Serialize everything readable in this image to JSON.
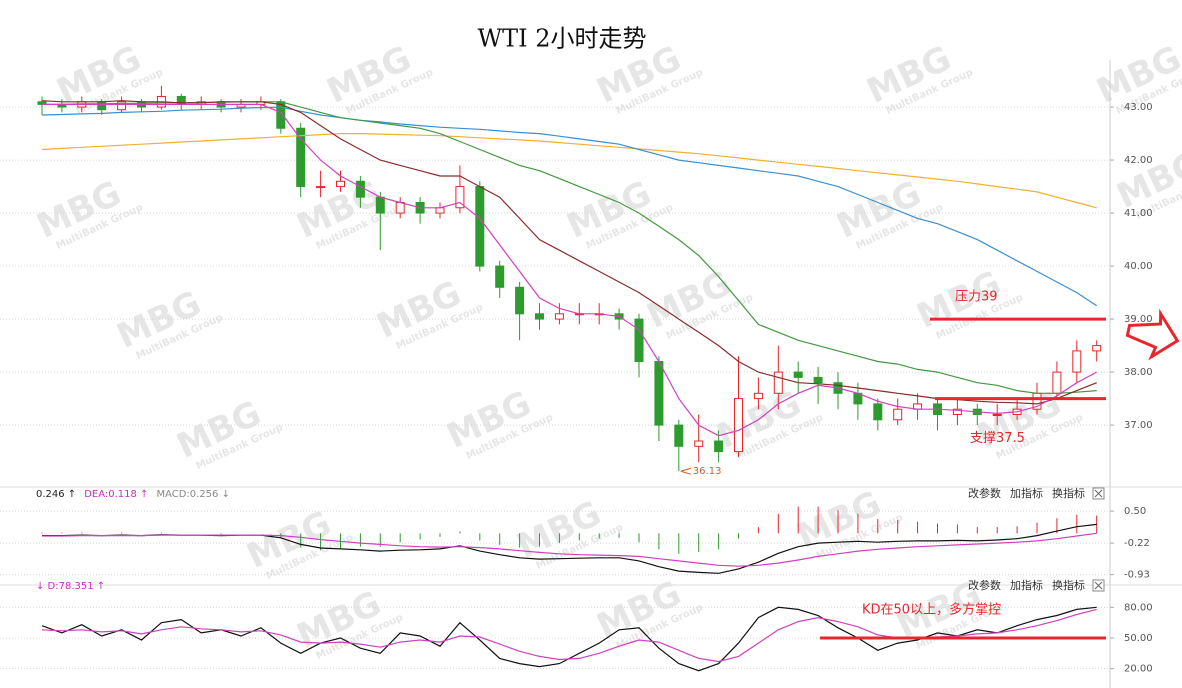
{
  "watermark": {
    "logo": "MBG",
    "text": "MultiBank Group"
  },
  "chart_data": [
    {
      "type": "candlestick",
      "title": "WTI 2小时走势",
      "open": [
        43.1,
        43.05,
        43.0,
        43.1,
        42.95,
        43.1,
        43.0,
        43.2,
        43.05,
        43.1,
        43.0,
        43.05,
        43.1,
        42.6,
        41.5,
        41.5,
        41.6,
        41.3,
        41.0,
        41.2,
        41.0,
        41.1,
        41.5,
        40.0,
        39.6,
        39.1,
        39.0,
        39.1,
        39.1,
        39.1,
        39.0,
        38.2,
        37.0,
        36.6,
        36.7,
        36.5,
        37.5,
        37.6,
        38.0,
        37.9,
        37.8,
        37.6,
        37.4,
        37.1,
        37.3,
        37.4,
        37.2,
        37.3,
        37.2,
        37.2,
        37.3,
        37.6,
        38.0,
        38.4
      ],
      "high": [
        43.2,
        43.15,
        43.2,
        43.15,
        43.2,
        43.15,
        43.4,
        43.25,
        43.2,
        43.15,
        43.15,
        43.2,
        43.15,
        42.7,
        41.8,
        41.8,
        41.7,
        41.4,
        41.3,
        41.3,
        41.2,
        41.9,
        41.6,
        40.1,
        39.7,
        39.3,
        39.3,
        39.3,
        39.3,
        39.2,
        39.1,
        38.3,
        37.1,
        37.2,
        36.9,
        38.3,
        37.9,
        38.5,
        38.2,
        38.1,
        38.0,
        37.8,
        37.5,
        37.5,
        37.6,
        37.5,
        37.5,
        37.4,
        37.4,
        37.5,
        37.8,
        38.2,
        38.6,
        38.6
      ],
      "low": [
        42.85,
        42.9,
        42.9,
        42.85,
        42.9,
        42.9,
        42.95,
        42.95,
        42.95,
        42.9,
        42.9,
        42.95,
        42.5,
        41.3,
        41.3,
        41.4,
        41.1,
        40.3,
        40.9,
        40.8,
        40.9,
        41.0,
        39.9,
        39.4,
        38.6,
        38.8,
        38.9,
        38.9,
        38.9,
        38.8,
        37.9,
        36.7,
        36.13,
        36.3,
        36.3,
        36.4,
        37.3,
        37.3,
        37.6,
        37.4,
        37.3,
        37.1,
        36.9,
        37.0,
        37.1,
        36.9,
        37.0,
        37.0,
        37.0,
        37.1,
        37.2,
        37.5,
        37.8,
        38.2
      ],
      "close": [
        43.05,
        43.0,
        43.1,
        42.95,
        43.1,
        43.0,
        43.2,
        43.05,
        43.1,
        43.0,
        43.05,
        43.1,
        42.6,
        41.5,
        41.5,
        41.6,
        41.3,
        41.0,
        41.2,
        41.0,
        41.1,
        41.5,
        40.0,
        39.6,
        39.1,
        39.0,
        39.1,
        39.1,
        39.1,
        39.0,
        38.2,
        37.0,
        36.6,
        36.7,
        36.5,
        37.5,
        37.6,
        38.0,
        37.9,
        37.8,
        37.6,
        37.4,
        37.1,
        37.3,
        37.4,
        37.2,
        37.3,
        37.2,
        37.2,
        37.3,
        37.6,
        38.0,
        38.4,
        38.5
      ],
      "up_color": "#e8242a",
      "down_color": "#2e9b2e",
      "series": [
        {
          "color": "#f0b030",
          "values": [
            42.2,
            42.22,
            42.24,
            42.26,
            42.28,
            42.3,
            42.32,
            42.34,
            42.36,
            42.38,
            42.4,
            42.42,
            42.44,
            42.46,
            42.48,
            42.5,
            42.5,
            42.49,
            42.48,
            42.47,
            42.46,
            42.44,
            42.42,
            42.4,
            42.38,
            42.36,
            42.33,
            42.3,
            42.27,
            42.24,
            42.21,
            42.18,
            42.15,
            42.12,
            42.08,
            42.04,
            42.0,
            41.96,
            41.92,
            41.88,
            41.84,
            41.8,
            41.76,
            41.72,
            41.68,
            41.64,
            41.6,
            41.55,
            41.5,
            41.45,
            41.4,
            41.3,
            41.2,
            41.1
          ]
        },
        {
          "color": "#3a8fd0",
          "values": [
            42.85,
            42.86,
            42.87,
            42.88,
            42.9,
            42.91,
            42.92,
            42.94,
            42.95,
            42.96,
            42.98,
            42.99,
            43.0,
            42.92,
            42.85,
            42.8,
            42.75,
            42.72,
            42.68,
            42.65,
            42.62,
            42.6,
            42.58,
            42.55,
            42.52,
            42.5,
            42.45,
            42.4,
            42.35,
            42.3,
            42.2,
            42.1,
            42.0,
            41.95,
            41.9,
            41.85,
            41.8,
            41.75,
            41.7,
            41.6,
            41.5,
            41.35,
            41.2,
            41.05,
            40.9,
            40.8,
            40.65,
            40.5,
            40.3,
            40.1,
            39.9,
            39.7,
            39.5,
            39.25
          ]
        },
        {
          "color": "#3f9a3f",
          "values": [
            43.05,
            43.05,
            43.06,
            43.06,
            43.07,
            43.07,
            43.08,
            43.08,
            43.09,
            43.09,
            43.1,
            43.1,
            43.1,
            43.0,
            42.9,
            42.8,
            42.75,
            42.7,
            42.65,
            42.6,
            42.5,
            42.35,
            42.2,
            42.05,
            41.9,
            41.8,
            41.65,
            41.5,
            41.35,
            41.2,
            41.0,
            40.75,
            40.5,
            40.2,
            39.8,
            39.35,
            38.9,
            38.75,
            38.6,
            38.5,
            38.4,
            38.3,
            38.2,
            38.15,
            38.05,
            38.0,
            37.9,
            37.8,
            37.75,
            37.65,
            37.6,
            37.6,
            37.62,
            37.65
          ]
        },
        {
          "color": "#8b2a2a",
          "values": [
            43.12,
            43.1,
            43.1,
            43.1,
            43.12,
            43.1,
            43.1,
            43.08,
            43.08,
            43.1,
            43.1,
            43.1,
            43.05,
            42.9,
            42.65,
            42.4,
            42.2,
            42.0,
            41.9,
            41.8,
            41.7,
            41.7,
            41.5,
            41.3,
            40.9,
            40.5,
            40.3,
            40.1,
            39.9,
            39.7,
            39.5,
            39.25,
            39.0,
            38.75,
            38.5,
            38.2,
            38.0,
            37.9,
            37.8,
            37.78,
            37.75,
            37.7,
            37.65,
            37.6,
            37.55,
            37.5,
            37.48,
            37.45,
            37.43,
            37.42,
            37.4,
            37.5,
            37.65,
            37.8
          ]
        },
        {
          "color": "#d040c0",
          "values": [
            43.05,
            43.05,
            43.05,
            43.05,
            43.05,
            43.05,
            43.05,
            43.05,
            43.05,
            43.05,
            43.05,
            43.05,
            42.9,
            42.4,
            42.0,
            41.7,
            41.5,
            41.3,
            41.2,
            41.1,
            41.1,
            41.2,
            40.9,
            40.4,
            39.9,
            39.4,
            39.2,
            39.1,
            39.1,
            39.05,
            38.8,
            38.2,
            37.5,
            37.0,
            36.8,
            36.9,
            37.1,
            37.4,
            37.6,
            37.75,
            37.7,
            37.6,
            37.45,
            37.35,
            37.3,
            37.3,
            37.28,
            37.25,
            37.22,
            37.25,
            37.35,
            37.55,
            37.8,
            38.0
          ]
        }
      ],
      "ylim": [
        35.87,
        43.85
      ],
      "yticks": [
        {
          "value": 43,
          "label": "43.00"
        },
        {
          "value": 42,
          "label": "42.00"
        },
        {
          "value": 41,
          "label": "41.00"
        },
        {
          "value": 40,
          "label": "40.00"
        },
        {
          "value": 39,
          "label": "39.00"
        },
        {
          "value": 38,
          "label": "38.00"
        },
        {
          "value": 37,
          "label": "37.00"
        }
      ],
      "grid": true,
      "level_color": "#e8262c",
      "levels": [
        {
          "label": "压力39",
          "value": 39
        },
        {
          "label": "支撑37.5",
          "value": 37.5
        }
      ],
      "min_label": 36.13
    },
    {
      "type": "macd",
      "legend": [
        {
          "text": "0.246 ↑",
          "color": "#222"
        },
        {
          "text": "DEA:0.118 ↑",
          "color": "#c030c0"
        },
        {
          "text": "MACD:0.256 ↓",
          "color": "#888"
        }
      ],
      "buttons": [
        "改参数",
        "加指标",
        "换指标"
      ],
      "series": [
        {
          "color": "#111",
          "values": [
            -0.05,
            -0.05,
            -0.04,
            -0.05,
            -0.04,
            -0.05,
            -0.03,
            -0.04,
            -0.04,
            -0.05,
            -0.04,
            -0.04,
            -0.1,
            -0.25,
            -0.33,
            -0.35,
            -0.37,
            -0.4,
            -0.38,
            -0.37,
            -0.35,
            -0.28,
            -0.4,
            -0.48,
            -0.55,
            -0.58,
            -0.57,
            -0.56,
            -0.55,
            -0.55,
            -0.62,
            -0.75,
            -0.85,
            -0.88,
            -0.9,
            -0.8,
            -0.65,
            -0.45,
            -0.3,
            -0.22,
            -0.2,
            -0.18,
            -0.2,
            -0.18,
            -0.17,
            -0.17,
            -0.16,
            -0.17,
            -0.15,
            -0.12,
            -0.05,
            0.05,
            0.15,
            0.2
          ]
        },
        {
          "color": "#d040c0",
          "values": [
            -0.06,
            -0.06,
            -0.05,
            -0.05,
            -0.05,
            -0.05,
            -0.04,
            -0.04,
            -0.04,
            -0.04,
            -0.04,
            -0.04,
            -0.05,
            -0.09,
            -0.14,
            -0.18,
            -0.22,
            -0.25,
            -0.28,
            -0.3,
            -0.31,
            -0.3,
            -0.32,
            -0.35,
            -0.39,
            -0.43,
            -0.46,
            -0.48,
            -0.49,
            -0.5,
            -0.52,
            -0.57,
            -0.62,
            -0.67,
            -0.72,
            -0.74,
            -0.72,
            -0.67,
            -0.6,
            -0.52,
            -0.46,
            -0.4,
            -0.36,
            -0.33,
            -0.3,
            -0.28,
            -0.26,
            -0.24,
            -0.22,
            -0.2,
            -0.17,
            -0.12,
            -0.06,
            0.0
          ]
        }
      ],
      "bars": {
        "up_color": "#e8242a",
        "down_color": "#2e9b2e",
        "values": [
          0.02,
          0.02,
          0.02,
          0,
          0.02,
          0,
          0.02,
          0,
          0,
          -0.02,
          0,
          0,
          -0.1,
          -0.32,
          -0.38,
          -0.34,
          -0.3,
          -0.3,
          -0.2,
          -0.14,
          -0.08,
          0.04,
          -0.16,
          -0.26,
          -0.32,
          -0.3,
          -0.22,
          -0.16,
          -0.12,
          -0.1,
          -0.2,
          -0.36,
          -0.46,
          -0.42,
          -0.36,
          -0.12,
          0.14,
          0.44,
          0.6,
          0.6,
          0.52,
          0.44,
          0.32,
          0.3,
          0.26,
          0.22,
          0.2,
          0.14,
          0.14,
          0.16,
          0.24,
          0.34,
          0.42,
          0.4
        ]
      },
      "ylim": [
        -1.05,
        0.75
      ],
      "yticks": [
        {
          "value": 0.5,
          "label": "0.50"
        },
        -0.22,
        -0.93
      ]
    },
    {
      "type": "kd",
      "legend": [
        {
          "text": "↓ D:78.351 ↑",
          "color": "#c030c0"
        }
      ],
      "buttons": [
        "改参数",
        "加指标",
        "换指标"
      ],
      "series": [
        {
          "color": "#111",
          "values": [
            62,
            55,
            63,
            52,
            58,
            48,
            65,
            68,
            55,
            58,
            52,
            60,
            45,
            35,
            45,
            50,
            40,
            35,
            55,
            52,
            42,
            65,
            48,
            30,
            25,
            22,
            25,
            35,
            45,
            58,
            60,
            40,
            25,
            18,
            25,
            45,
            70,
            80,
            78,
            72,
            60,
            50,
            38,
            45,
            48,
            55,
            52,
            58,
            55,
            62,
            68,
            72,
            78,
            80
          ]
        },
        {
          "color": "#d040c0",
          "values": [
            58,
            57,
            58,
            56,
            57,
            54,
            58,
            61,
            59,
            58,
            56,
            57,
            53,
            46,
            45,
            46,
            44,
            41,
            46,
            48,
            46,
            52,
            51,
            44,
            37,
            32,
            29,
            30,
            35,
            42,
            48,
            46,
            38,
            30,
            27,
            32,
            45,
            58,
            66,
            70,
            66,
            61,
            53,
            50,
            49,
            51,
            52,
            54,
            55,
            58,
            62,
            67,
            73,
            78
          ]
        }
      ],
      "ylim": [
        5,
        95
      ],
      "yticks": [
        {
          "value": 80,
          "label": "80.00"
        },
        {
          "value": 50,
          "label": "50.00"
        },
        {
          "value": 20,
          "label": "20.00"
        }
      ],
      "level_color": "#e8262c",
      "levels": [
        {
          "value": 50,
          "label": "KD在50以上，多方掌控"
        }
      ]
    }
  ]
}
